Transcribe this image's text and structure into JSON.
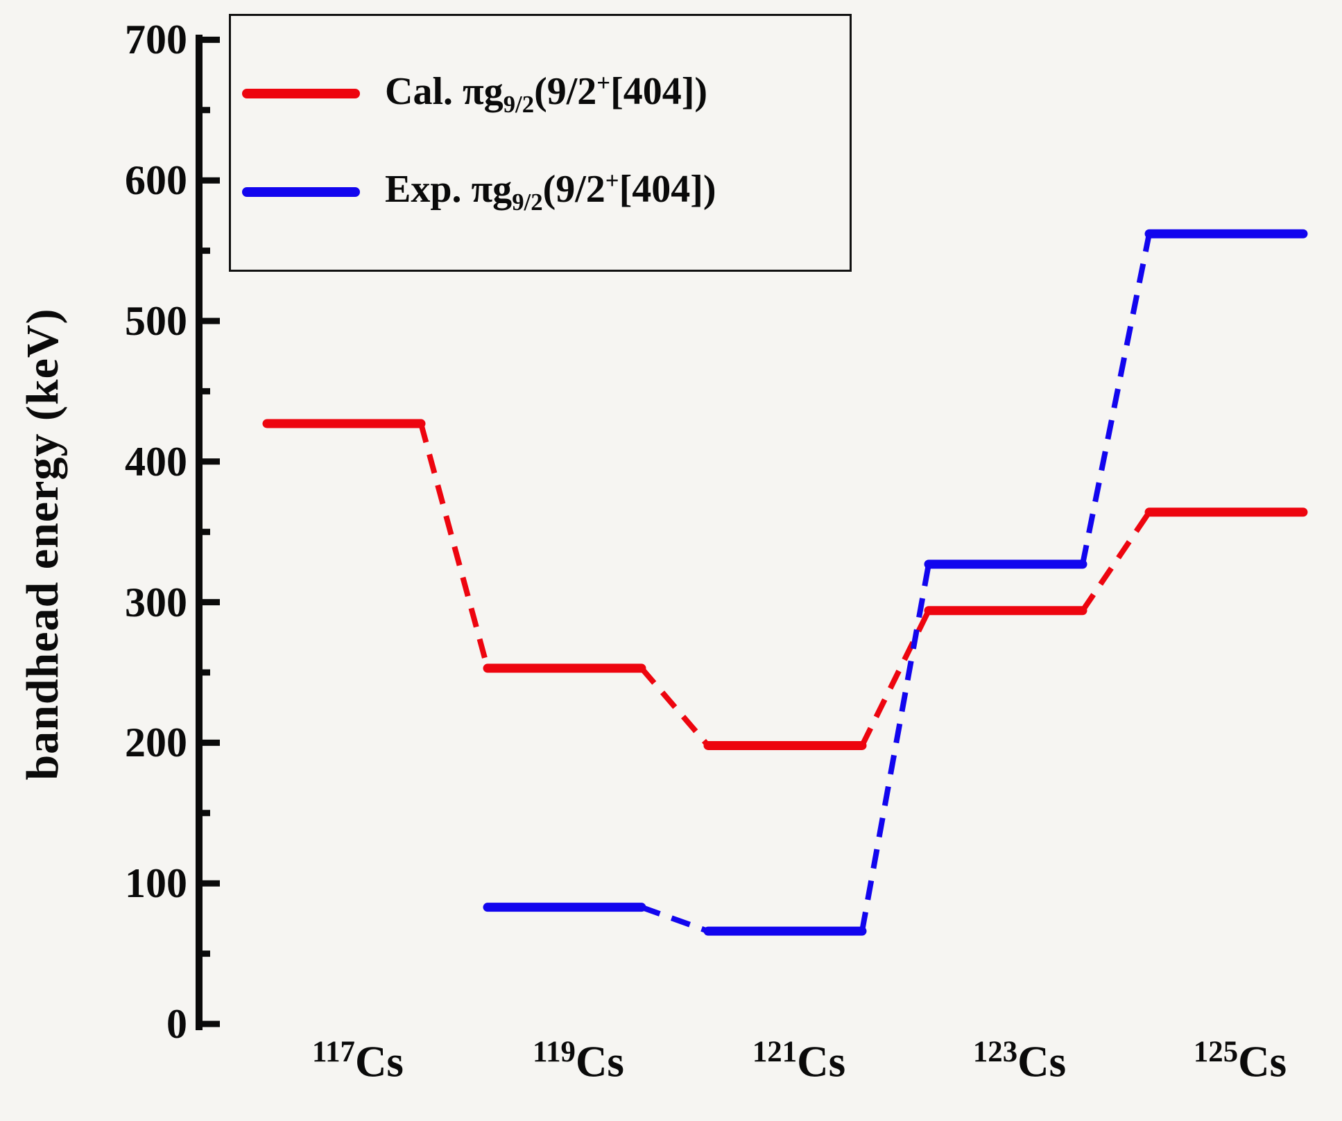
{
  "figure": {
    "background": "#f6f5f2",
    "axis_color": "#0a0a0a"
  },
  "legend": {
    "items": [
      {
        "id": "cal",
        "label": "Cal. πg9/2(9/2+[404])",
        "color": "#ed050f",
        "parts": [
          {
            "t": "Cal. πg"
          },
          {
            "sub": "9/2"
          },
          {
            "t": "(9/2"
          },
          {
            "sup": "+"
          },
          {
            "t": "[404])"
          }
        ]
      },
      {
        "id": "exp",
        "label": "Exp. πg9/2(9/2+[404])",
        "color": "#1205ee",
        "parts": [
          {
            "t": "Exp. πg"
          },
          {
            "sub": "9/2"
          },
          {
            "t": "(9/2"
          },
          {
            "sup": "+"
          },
          {
            "t": "[404])"
          }
        ]
      }
    ]
  },
  "chart_data": {
    "type": "line",
    "subtype": "level-scheme-steps",
    "title": "",
    "xlabel": "",
    "ylabel": "bandhead energy (keV)",
    "unit": "keV",
    "categories": [
      "117Cs",
      "119Cs",
      "121Cs",
      "123Cs",
      "125Cs"
    ],
    "categories_display": [
      {
        "sup": "117",
        "t": "Cs"
      },
      {
        "sup": "119",
        "t": "Cs"
      },
      {
        "sup": "121",
        "t": "Cs"
      },
      {
        "sup": "123",
        "t": "Cs"
      },
      {
        "sup": "125",
        "t": "Cs"
      }
    ],
    "series": [
      {
        "name": "Cal. πg9/2(9/2+[404])",
        "id": "cal",
        "color": "#ed050f",
        "values": [
          427,
          253,
          198,
          294,
          364
        ]
      },
      {
        "name": "Exp. πg9/2(9/2+[404])",
        "id": "exp",
        "color": "#1205ee",
        "values": [
          null,
          83,
          66,
          327,
          562
        ]
      }
    ],
    "ylim": [
      0,
      700
    ],
    "ytick_major": 100,
    "ytick_minor": 50,
    "grid": false,
    "legend_position": "top-left",
    "line_style": "solid levels connected by dashed transitions"
  }
}
